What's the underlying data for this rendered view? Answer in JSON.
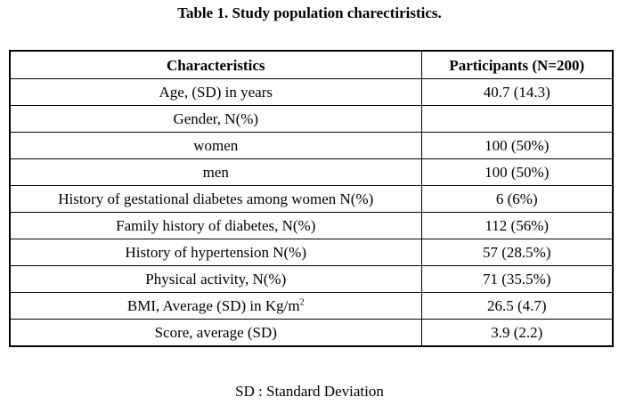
{
  "title": "Table 1. Study population charectiristics.",
  "table": {
    "headers": [
      "Characteristics",
      "Participants (N=200)"
    ],
    "rows": [
      {
        "label": "Age, (SD) in years",
        "value": "40.7 (14.3)"
      },
      {
        "label": "Gender, N(%)",
        "value": ""
      },
      {
        "label": "women",
        "value": "100 (50%)"
      },
      {
        "label": "men",
        "value": "100 (50%)"
      },
      {
        "label": "History of gestational diabetes among women N(%)",
        "value": "6 (6%)"
      },
      {
        "label": "Family history of diabetes, N(%)",
        "value": "112 (56%)"
      },
      {
        "label": "History of hypertension N(%)",
        "value": "57 (28.5%)"
      },
      {
        "label": "Physical activity, N(%)",
        "value": "71 (35.5%)"
      },
      {
        "label": "BMI, Average (SD) in Kg/m",
        "label_sup": "2",
        "value": "26.5 (4.7)"
      },
      {
        "label": "Score, average (SD)",
        "value": "3.9 (2.2)"
      }
    ]
  },
  "footnote": "SD : Standard Deviation"
}
